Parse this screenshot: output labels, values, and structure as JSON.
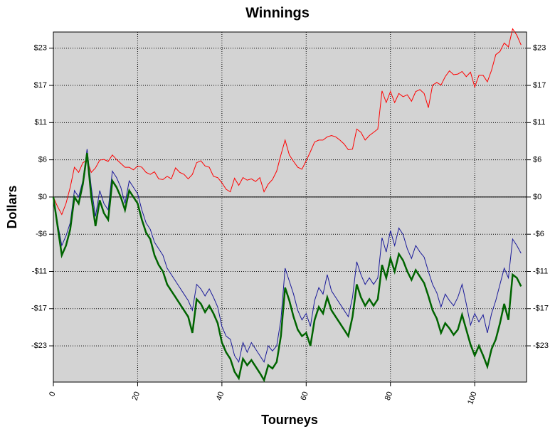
{
  "chart_data": {
    "type": "line",
    "title": "Winnings",
    "x_label": "Tourneys",
    "y_label": "Dollars",
    "x": [
      0,
      1,
      2,
      3,
      4,
      5,
      6,
      7,
      8,
      9,
      10,
      11,
      12,
      13,
      14,
      15,
      16,
      17,
      18,
      19,
      20,
      21,
      22,
      23,
      24,
      25,
      26,
      27,
      28,
      29,
      30,
      31,
      32,
      33,
      34,
      35,
      36,
      37,
      38,
      39,
      40,
      41,
      42,
      43,
      44,
      45,
      46,
      47,
      48,
      49,
      50,
      51,
      52,
      53,
      54,
      55,
      56,
      57,
      58,
      59,
      60,
      61,
      62,
      63,
      64,
      65,
      66,
      67,
      68,
      69,
      70,
      71,
      72,
      73,
      74,
      75,
      76,
      77,
      78,
      79,
      80,
      81,
      82,
      83,
      84,
      85,
      86,
      87,
      88,
      89,
      90,
      91,
      92,
      93,
      94,
      95,
      96,
      97,
      98,
      99,
      100,
      101,
      102,
      103,
      104,
      105,
      106,
      107,
      108,
      109,
      110,
      111
    ],
    "series": [
      {
        "color": "#ff0000",
        "width": 1,
        "values": [
          0,
          -1.5,
          -2.7,
          -1,
          1.5,
          4.6,
          3.8,
          5.3,
          5.7,
          3.8,
          4.5,
          5.7,
          5.8,
          5.5,
          6.5,
          5.8,
          5.2,
          4.6,
          4.6,
          4.2,
          4.8,
          4.6,
          3.8,
          3.5,
          3.9,
          2.8,
          2.7,
          3.2,
          2.8,
          4.5,
          3.8,
          3.5,
          2.8,
          3.5,
          5.3,
          5.6,
          4.8,
          4.6,
          3.2,
          3.0,
          2.2,
          1.2,
          0.8,
          2.9,
          1.8,
          3.0,
          2.6,
          2.8,
          2.4,
          3.0,
          0.8,
          2.0,
          2.7,
          4.0,
          6.5,
          8.8,
          6.5,
          5.5,
          4.6,
          4.3,
          5.6,
          7.0,
          8.5,
          8.8,
          8.8,
          9.3,
          9.5,
          9.3,
          8.8,
          8.2,
          7.3,
          7.4,
          10.5,
          10.0,
          8.8,
          9.5,
          10.0,
          10.5,
          16.4,
          14.6,
          16.3,
          14.6,
          16.0,
          15.5,
          15.8,
          14.8,
          16.3,
          16.6,
          16.0,
          13.8,
          17.3,
          17.7,
          17.3,
          18.6,
          19.5,
          18.9,
          19.0,
          19.4,
          18.6,
          19.3,
          17.0,
          18.8,
          18.8,
          17.8,
          19.6,
          22.0,
          22.5,
          23.8,
          23.2,
          26.0,
          25.0,
          23.5
        ]
      },
      {
        "color": "#1a1a9a",
        "width": 1,
        "values": [
          0,
          -4,
          -7.5,
          -6,
          -4,
          1,
          0,
          2.5,
          7.4,
          1.5,
          -3,
          1,
          -1,
          -2,
          4,
          3,
          1.5,
          -1,
          2.5,
          1.5,
          0.5,
          -2,
          -4,
          -5,
          -7,
          -8,
          -9,
          -11,
          -12,
          -13,
          -14,
          -15,
          -16,
          -17.5,
          -13.5,
          -14.2,
          -15.3,
          -14.2,
          -15.5,
          -17,
          -20,
          -21.5,
          -22,
          -24.5,
          -25.5,
          -22.5,
          -24,
          -22.5,
          -23.5,
          -24.5,
          -25.5,
          -23,
          -23.8,
          -23,
          -19,
          -11,
          -13,
          -15,
          -17.5,
          -19,
          -18,
          -20,
          -16,
          -14,
          -15,
          -12,
          -14.5,
          -15.5,
          -16.5,
          -17.5,
          -18.5,
          -15.5,
          -10,
          -12,
          -13.5,
          -12.5,
          -13.5,
          -12.5,
          -6.3,
          -8.5,
          -5.2,
          -7.5,
          -4.8,
          -5.8,
          -8,
          -9.5,
          -7.5,
          -8.5,
          -9.3,
          -11.5,
          -13.5,
          -14.8,
          -17,
          -15,
          -16,
          -16.8,
          -15.5,
          -13.5,
          -16.5,
          -19.8,
          -18,
          -19.3,
          -18.2,
          -21,
          -18,
          -16,
          -13.5,
          -11,
          -12.5,
          -6.5,
          -7.5,
          -8.7
        ]
      },
      {
        "color": "#006400",
        "width": 2.5,
        "values": [
          0,
          -4.5,
          -9,
          -7.5,
          -5,
          0,
          -1,
          2,
          6.8,
          0,
          -4.5,
          -0.5,
          -2.5,
          -3.5,
          2.5,
          1.5,
          0,
          -2,
          1,
          0,
          -1,
          -3.5,
          -5.5,
          -6.5,
          -9,
          -10.5,
          -11.5,
          -13.5,
          -14.5,
          -15.5,
          -16.5,
          -17.5,
          -18.5,
          -21,
          -15.8,
          -16.5,
          -17.8,
          -16.8,
          -18,
          -19.5,
          -22.5,
          -24,
          -25,
          -27,
          -28,
          -25,
          -26,
          -25.2,
          -26.2,
          -27.2,
          -28.3,
          -26,
          -26.5,
          -25.5,
          -21.5,
          -14,
          -16,
          -18.5,
          -20.5,
          -21.5,
          -21,
          -23,
          -19,
          -17,
          -18,
          -15.5,
          -17.5,
          -18.5,
          -19.5,
          -20.5,
          -21.5,
          -18.5,
          -13.5,
          -15.5,
          -16.8,
          -15.8,
          -16.8,
          -15.8,
          -10.5,
          -12.5,
          -9.5,
          -11.5,
          -8.8,
          -9.8,
          -11.5,
          -12.8,
          -11.3,
          -12.3,
          -13.3,
          -15.3,
          -17.5,
          -18.8,
          -21,
          -19.5,
          -20.3,
          -21.3,
          -20.5,
          -18.2,
          -20.5,
          -22.8,
          -24.5,
          -23,
          -24.5,
          -26.2,
          -23.5,
          -22,
          -19.5,
          -16.5,
          -19,
          -12,
          -12.5,
          -13.8
        ]
      }
    ],
    "xlim": [
      0,
      112.3
    ],
    "ylim": [
      -28.6,
      25.5
    ],
    "xticks": [
      0,
      20,
      40,
      60,
      80,
      100
    ],
    "yticks": [
      {
        "value": 23,
        "label": "$23"
      },
      {
        "value": 17.25,
        "label": "$17"
      },
      {
        "value": 11.5,
        "label": "$11"
      },
      {
        "value": 5.75,
        "label": "$6"
      },
      {
        "value": 0,
        "label": "$0"
      },
      {
        "value": -5.75,
        "label": "-$6"
      },
      {
        "value": -11.5,
        "label": "-$11"
      },
      {
        "value": -17.25,
        "label": "-$17"
      },
      {
        "value": -23,
        "label": "-$23"
      }
    ],
    "grid": true,
    "zero_line": true,
    "plot_background": "#d3d3d3"
  }
}
